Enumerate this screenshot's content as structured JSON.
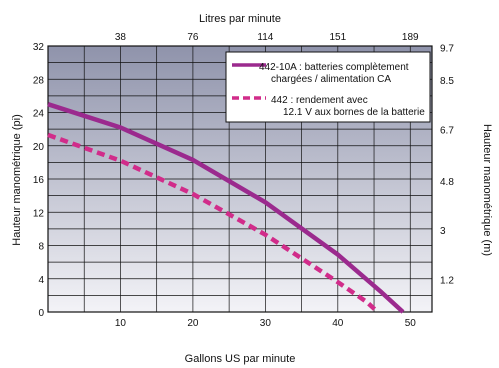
{
  "chart_data": {
    "type": "line",
    "x_label": "Gallons US par minute",
    "x2_label": "Litres par minute",
    "y_label": "Hauteur manométrique (pi)",
    "y2_label": "Hauteur manométrique (m)",
    "x_ticks": [
      "10",
      "20",
      "30",
      "40",
      "50"
    ],
    "x2_ticks": [
      "38",
      "76",
      "114",
      "151",
      "189"
    ],
    "y_ticks": [
      "0",
      "4",
      "8",
      "12",
      "16",
      "20",
      "24",
      "28",
      "32"
    ],
    "y2_ticks": [
      "1.2",
      "3",
      "4.8",
      "6.7",
      "8.5",
      "9.7"
    ],
    "xlim": [
      0,
      53
    ],
    "ylim": [
      0,
      32
    ],
    "grid": true,
    "legend_position": "top-right",
    "series": [
      {
        "name": "442-10A : batteries complètement chargées / alimentation CA",
        "line1": "442-10A : batteries complètement",
        "line2": "chargées / alimentation CA",
        "color": "#9b2a8e",
        "style": "solid",
        "x": [
          0,
          10,
          20,
          30,
          40,
          46,
          49
        ],
        "y": [
          25,
          22.2,
          18.3,
          13.2,
          6.9,
          2.4,
          0
        ]
      },
      {
        "name": "442 : rendement avec 12.1 V aux bornes de la batterie",
        "line1": "442 : rendement avec",
        "line2": "12.1 V aux bornes de la batterie",
        "color": "#d12c8a",
        "style": "dashed",
        "x": [
          0,
          10,
          20,
          30,
          40,
          44,
          45.5
        ],
        "y": [
          21.3,
          18.2,
          14.2,
          9.3,
          3.6,
          1.2,
          0
        ]
      }
    ]
  }
}
